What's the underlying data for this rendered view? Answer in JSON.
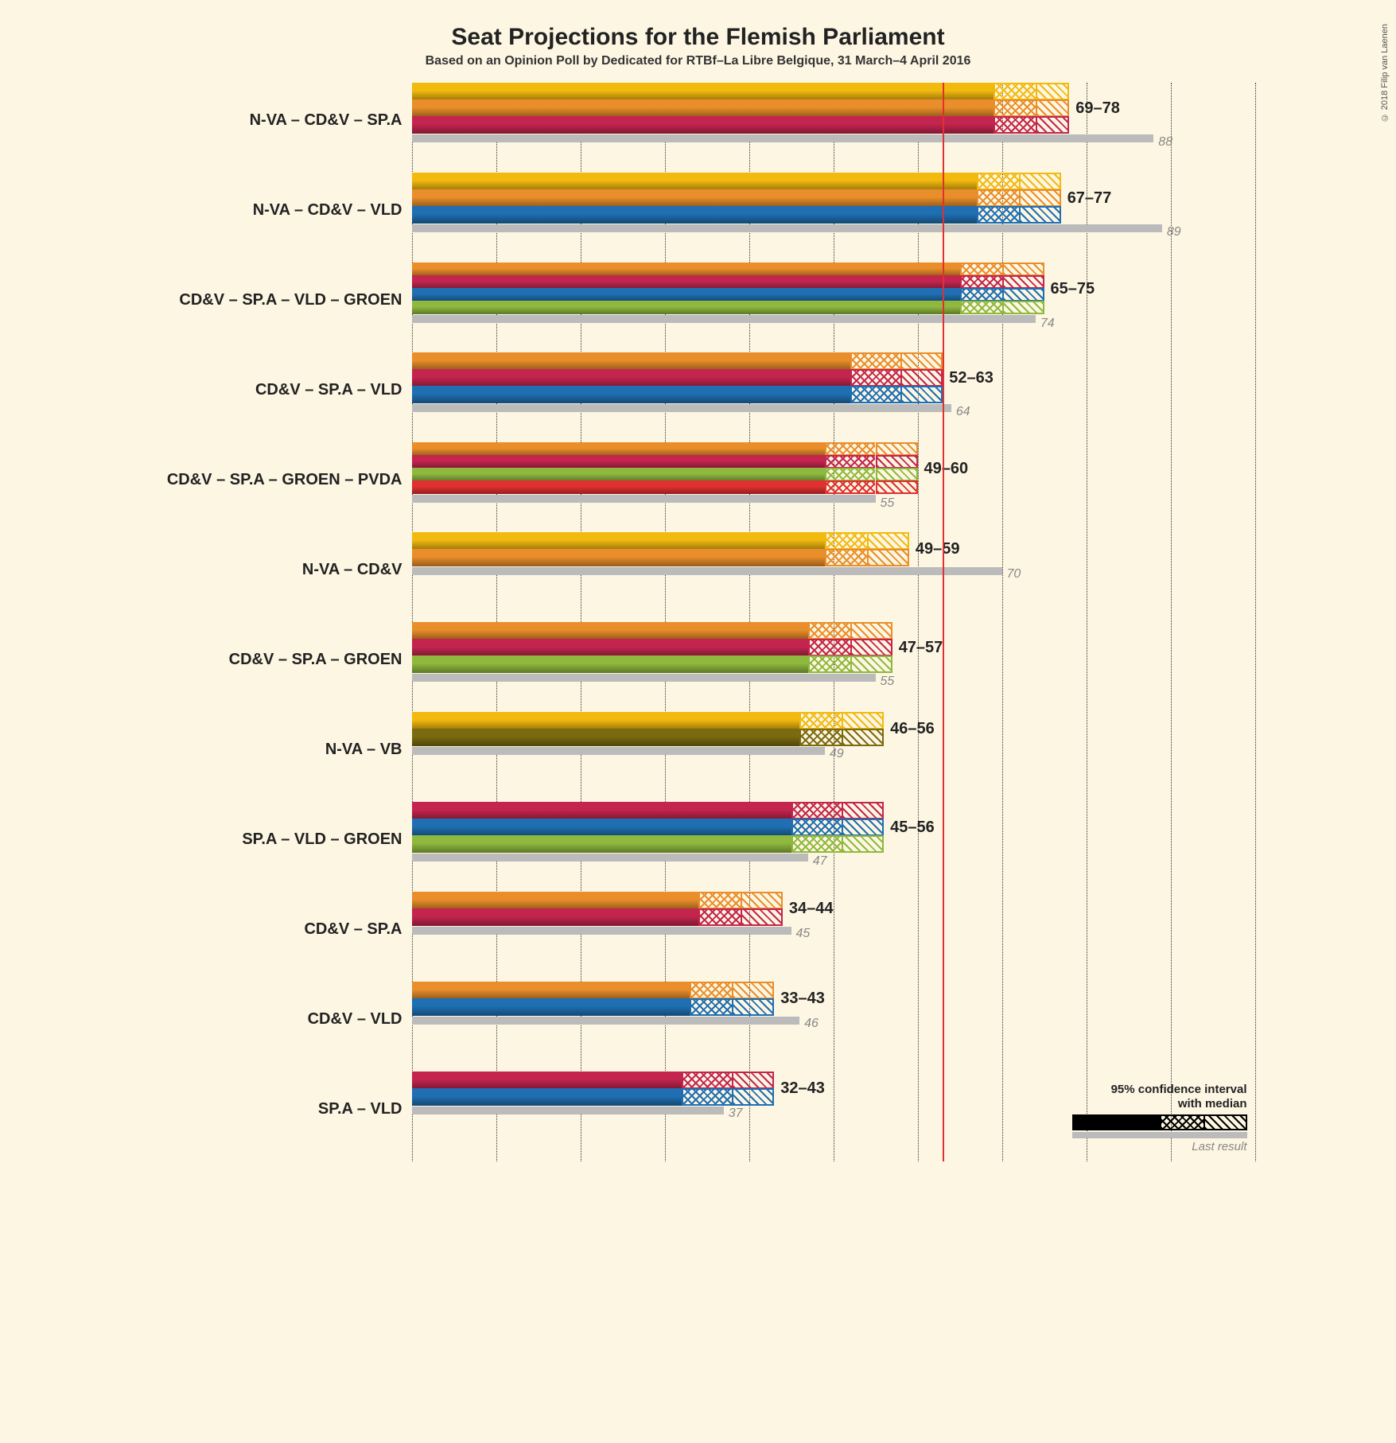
{
  "copyright": "© 2018 Filip van Laenen",
  "title": "Seat Projections for the Flemish Parliament",
  "subtitle": "Based on an Opinion Poll by Dedicated for RTBf–La Libre Belgique, 31 March–4 April 2016",
  "chart": {
    "type": "bar",
    "background_color": "#fdf6e3",
    "grid_color": "#333333",
    "grid_style": "dotted",
    "xlim": [
      0,
      100
    ],
    "xtick_step": 10,
    "majority_threshold": 63,
    "majority_line_color": "#e03030",
    "title_fontsize": 30,
    "subtitle_fontsize": 16,
    "label_fontsize": 20,
    "range_fontsize": 20,
    "last_label_fontsize": 16,
    "last_label_color": "#888888",
    "last_bar_color": "#bbbbbb",
    "party_colors": {
      "N-VA": "#f2b90f",
      "CD&V": "#e98e2a",
      "SP.A": "#c4254f",
      "VLD": "#1f6fb2",
      "GROEN": "#8fb93e",
      "PVDA": "#e03030",
      "VB": "#7a6a10"
    },
    "rows": [
      {
        "label": "N-VA – CD&V – SP.A",
        "parties": [
          "N-VA",
          "CD&V",
          "SP.A"
        ],
        "low": 69,
        "median": 74,
        "high": 78,
        "last": 88
      },
      {
        "label": "N-VA – CD&V – VLD",
        "parties": [
          "N-VA",
          "CD&V",
          "VLD"
        ],
        "low": 67,
        "median": 72,
        "high": 77,
        "last": 89
      },
      {
        "label": "CD&V – SP.A – VLD – GROEN",
        "parties": [
          "CD&V",
          "SP.A",
          "VLD",
          "GROEN"
        ],
        "low": 65,
        "median": 70,
        "high": 75,
        "last": 74
      },
      {
        "label": "CD&V – SP.A – VLD",
        "parties": [
          "CD&V",
          "SP.A",
          "VLD"
        ],
        "low": 52,
        "median": 58,
        "high": 63,
        "last": 64
      },
      {
        "label": "CD&V – SP.A – GROEN – PVDA",
        "parties": [
          "CD&V",
          "SP.A",
          "GROEN",
          "PVDA"
        ],
        "low": 49,
        "median": 55,
        "high": 60,
        "last": 55
      },
      {
        "label": "N-VA – CD&V",
        "parties": [
          "N-VA",
          "CD&V"
        ],
        "low": 49,
        "median": 54,
        "high": 59,
        "last": 70
      },
      {
        "label": "CD&V – SP.A – GROEN",
        "parties": [
          "CD&V",
          "SP.A",
          "GROEN"
        ],
        "low": 47,
        "median": 52,
        "high": 57,
        "last": 55
      },
      {
        "label": "N-VA – VB",
        "parties": [
          "N-VA",
          "VB"
        ],
        "low": 46,
        "median": 51,
        "high": 56,
        "last": 49
      },
      {
        "label": "SP.A – VLD – GROEN",
        "parties": [
          "SP.A",
          "VLD",
          "GROEN"
        ],
        "low": 45,
        "median": 51,
        "high": 56,
        "last": 47
      },
      {
        "label": "CD&V – SP.A",
        "parties": [
          "CD&V",
          "SP.A"
        ],
        "low": 34,
        "median": 39,
        "high": 44,
        "last": 45
      },
      {
        "label": "CD&V – VLD",
        "parties": [
          "CD&V",
          "VLD"
        ],
        "low": 33,
        "median": 38,
        "high": 43,
        "last": 46
      },
      {
        "label": "SP.A – VLD",
        "parties": [
          "SP.A",
          "VLD"
        ],
        "low": 32,
        "median": 38,
        "high": 43,
        "last": 37
      }
    ]
  },
  "legend": {
    "title_line1": "95% confidence interval",
    "title_line2": "with median",
    "sub": "Last result"
  }
}
